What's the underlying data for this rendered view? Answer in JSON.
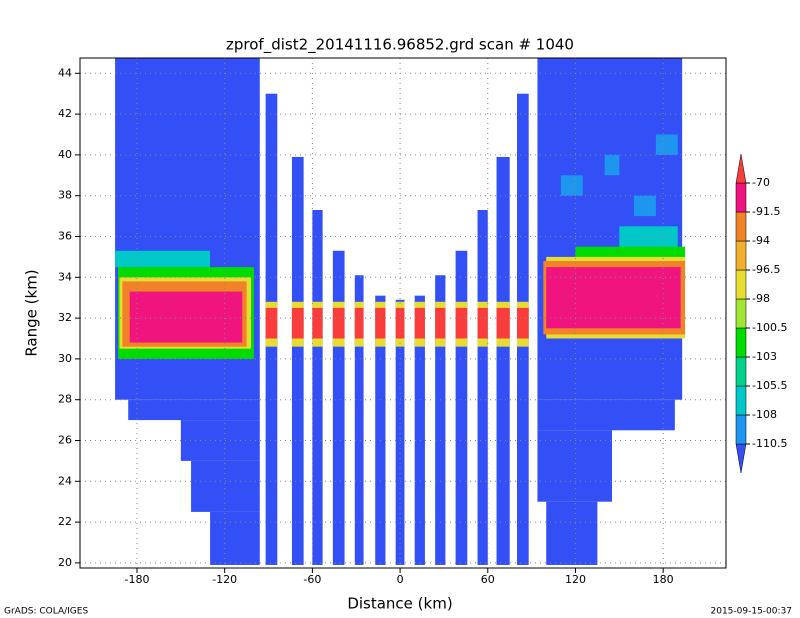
{
  "chart_data": {
    "type": "heatmap",
    "title": "zprof_dist2_20141116.96852.grd   scan # 1040",
    "xlabel": "Distance (km)",
    "ylabel": "Range (km)",
    "footer_left": "GrADS: COLA/IGES",
    "footer_right": "2015-09-15-00:37",
    "xlim": [
      -219,
      223
    ],
    "ylim": [
      19.75,
      44.75
    ],
    "xticks": [
      -180,
      -120,
      -60,
      0,
      60,
      120,
      180
    ],
    "yticks": [
      20,
      22,
      24,
      26,
      28,
      30,
      32,
      34,
      36,
      38,
      40,
      42,
      44
    ],
    "grid": true,
    "levels": [
      -110.5,
      -108,
      -105.5,
      -103,
      -100.5,
      -98,
      -96.5,
      -94,
      -91.5,
      -70
    ],
    "colors": [
      "#3250f5",
      "#1e96f0",
      "#00c8c8",
      "#00d28c",
      "#00dc00",
      "#a0e632",
      "#e6dc32",
      "#f0af2d",
      "#f08228",
      "#f0147f",
      "#fa3c3c"
    ],
    "cells": [
      {
        "x": [
          -195,
          -96
        ],
        "y": [
          28,
          44.75
        ],
        "value": -112
      },
      {
        "x": [
          -186,
          -96
        ],
        "y": [
          27,
          28
        ],
        "value": -112
      },
      {
        "x": [
          -150,
          -96
        ],
        "y": [
          25,
          27
        ],
        "value": -112
      },
      {
        "x": [
          -143,
          -96
        ],
        "y": [
          22.5,
          25
        ],
        "value": -112
      },
      {
        "x": [
          -130,
          -96
        ],
        "y": [
          19.9,
          22.5
        ],
        "value": -112
      },
      {
        "x": [
          94,
          193
        ],
        "y": [
          28,
          44.75
        ],
        "value": -112
      },
      {
        "x": [
          94,
          188
        ],
        "y": [
          26.5,
          28
        ],
        "value": -112
      },
      {
        "x": [
          94,
          145
        ],
        "y": [
          23,
          26.5
        ],
        "value": -112
      },
      {
        "x": [
          100,
          135
        ],
        "y": [
          19.9,
          23
        ],
        "value": -112
      },
      {
        "x": [
          -92,
          -84
        ],
        "y": [
          19.9,
          43
        ],
        "value": -112
      },
      {
        "x": [
          -74,
          -66
        ],
        "y": [
          19.9,
          39.9
        ],
        "value": -112
      },
      {
        "x": [
          -60,
          -53
        ],
        "y": [
          19.9,
          37.3
        ],
        "value": -112
      },
      {
        "x": [
          -46,
          -38
        ],
        "y": [
          19.9,
          35.3
        ],
        "value": -112
      },
      {
        "x": [
          -31,
          -25
        ],
        "y": [
          19.9,
          34.1
        ],
        "value": -112
      },
      {
        "x": [
          -17,
          -10
        ],
        "y": [
          19.9,
          33.1
        ],
        "value": -112
      },
      {
        "x": [
          -3,
          3
        ],
        "y": [
          19.9,
          32.9
        ],
        "value": -112
      },
      {
        "x": [
          10,
          17
        ],
        "y": [
          19.9,
          33.1
        ],
        "value": -112
      },
      {
        "x": [
          24,
          31
        ],
        "y": [
          19.9,
          34.1
        ],
        "value": -112
      },
      {
        "x": [
          38,
          46
        ],
        "y": [
          19.9,
          35.3
        ],
        "value": -112
      },
      {
        "x": [
          53,
          60
        ],
        "y": [
          19.9,
          37.3
        ],
        "value": -112
      },
      {
        "x": [
          66,
          75
        ],
        "y": [
          19.9,
          39.9
        ],
        "value": -112
      },
      {
        "x": [
          80,
          88
        ],
        "y": [
          19.9,
          43
        ],
        "value": -112
      },
      {
        "x": [
          -195,
          -130
        ],
        "y": [
          34.5,
          35.3
        ],
        "value": -107
      },
      {
        "x": [
          -193,
          -100
        ],
        "y": [
          30,
          34.5
        ],
        "value": -102
      },
      {
        "x": [
          -192,
          -102
        ],
        "y": [
          30.5,
          34
        ],
        "value": -97
      },
      {
        "x": [
          -190,
          -105
        ],
        "y": [
          30.6,
          33.8
        ],
        "value": -93
      },
      {
        "x": [
          -185,
          -108
        ],
        "y": [
          30.8,
          33.3
        ],
        "value": -80
      },
      {
        "x": [
          150,
          190
        ],
        "y": [
          34.8,
          36.5
        ],
        "value": -107
      },
      {
        "x": [
          120,
          195
        ],
        "y": [
          34,
          35.5
        ],
        "value": -102
      },
      {
        "x": [
          100,
          195
        ],
        "y": [
          31,
          35
        ],
        "value": -97
      },
      {
        "x": [
          98,
          195
        ],
        "y": [
          31.2,
          34.8
        ],
        "value": -93
      },
      {
        "x": [
          100,
          192
        ],
        "y": [
          31.5,
          34.5
        ],
        "value": -80
      },
      {
        "x": [
          110,
          125
        ],
        "y": [
          38,
          39
        ],
        "value": -109
      },
      {
        "x": [
          140,
          150
        ],
        "y": [
          39,
          40
        ],
        "value": -109
      },
      {
        "x": [
          160,
          175
        ],
        "y": [
          37,
          38
        ],
        "value": -109
      },
      {
        "x": [
          175,
          190
        ],
        "y": [
          40,
          41
        ],
        "value": -109
      },
      {
        "x": [
          -92,
          -84
        ],
        "y": [
          30.6,
          32.8
        ],
        "value": -97
      },
      {
        "x": [
          -74,
          -66
        ],
        "y": [
          30.6,
          32.8
        ],
        "value": -97
      },
      {
        "x": [
          -60,
          -53
        ],
        "y": [
          30.6,
          32.8
        ],
        "value": -97
      },
      {
        "x": [
          -46,
          -38
        ],
        "y": [
          30.6,
          32.8
        ],
        "value": -97
      },
      {
        "x": [
          -31,
          -25
        ],
        "y": [
          30.6,
          32.8
        ],
        "value": -97
      },
      {
        "x": [
          -17,
          -10
        ],
        "y": [
          30.6,
          32.8
        ],
        "value": -97
      },
      {
        "x": [
          -3,
          3
        ],
        "y": [
          30.6,
          32.8
        ],
        "value": -97
      },
      {
        "x": [
          10,
          17
        ],
        "y": [
          30.6,
          32.8
        ],
        "value": -97
      },
      {
        "x": [
          24,
          31
        ],
        "y": [
          30.6,
          32.8
        ],
        "value": -97
      },
      {
        "x": [
          38,
          46
        ],
        "y": [
          30.6,
          32.8
        ],
        "value": -97
      },
      {
        "x": [
          53,
          60
        ],
        "y": [
          30.6,
          32.8
        ],
        "value": -97
      },
      {
        "x": [
          66,
          75
        ],
        "y": [
          30.6,
          32.8
        ],
        "value": -97
      },
      {
        "x": [
          80,
          88
        ],
        "y": [
          30.6,
          32.8
        ],
        "value": -97
      },
      {
        "x": [
          -92,
          -84
        ],
        "y": [
          31,
          32.5
        ],
        "value": -65
      },
      {
        "x": [
          -74,
          -66
        ],
        "y": [
          31,
          32.5
        ],
        "value": -65
      },
      {
        "x": [
          -60,
          -53
        ],
        "y": [
          31,
          32.5
        ],
        "value": -65
      },
      {
        "x": [
          -46,
          -38
        ],
        "y": [
          31,
          32.5
        ],
        "value": -65
      },
      {
        "x": [
          -31,
          -25
        ],
        "y": [
          31,
          32.5
        ],
        "value": -65
      },
      {
        "x": [
          -17,
          -10
        ],
        "y": [
          31,
          32.5
        ],
        "value": -65
      },
      {
        "x": [
          -3,
          3
        ],
        "y": [
          31,
          32.5
        ],
        "value": -65
      },
      {
        "x": [
          10,
          17
        ],
        "y": [
          31,
          32.5
        ],
        "value": -65
      },
      {
        "x": [
          24,
          31
        ],
        "y": [
          31,
          32.5
        ],
        "value": -65
      },
      {
        "x": [
          38,
          46
        ],
        "y": [
          31,
          32.5
        ],
        "value": -65
      },
      {
        "x": [
          53,
          60
        ],
        "y": [
          31,
          32.5
        ],
        "value": -65
      },
      {
        "x": [
          66,
          75
        ],
        "y": [
          31,
          32.5
        ],
        "value": -65
      },
      {
        "x": [
          80,
          88
        ],
        "y": [
          31,
          32.5
        ],
        "value": -65
      }
    ]
  }
}
